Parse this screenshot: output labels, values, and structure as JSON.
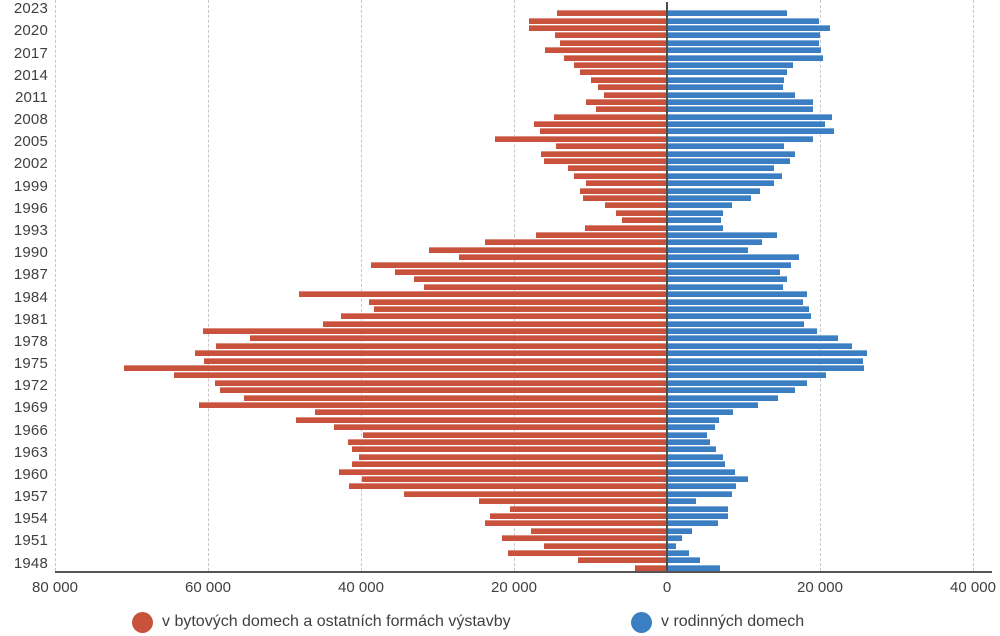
{
  "chart_data": {
    "type": "bar",
    "variant": "diverging-horizontal-pyramid",
    "title": "",
    "xlabel": "",
    "ylabel": "",
    "grid": "vertical-dashed",
    "legend_position": "bottom",
    "years": [
      1948,
      1949,
      1950,
      1951,
      1952,
      1953,
      1954,
      1955,
      1956,
      1957,
      1958,
      1959,
      1960,
      1961,
      1962,
      1963,
      1964,
      1965,
      1966,
      1967,
      1968,
      1969,
      1970,
      1971,
      1972,
      1973,
      1974,
      1975,
      1976,
      1977,
      1978,
      1979,
      1980,
      1981,
      1982,
      1983,
      1984,
      1985,
      1986,
      1987,
      1988,
      1989,
      1990,
      1991,
      1992,
      1993,
      1994,
      1995,
      1996,
      1997,
      1998,
      1999,
      2000,
      2001,
      2002,
      2003,
      2004,
      2005,
      2006,
      2007,
      2008,
      2009,
      2010,
      2011,
      2012,
      2013,
      2014,
      2015,
      2016,
      2017,
      2018,
      2019,
      2020,
      2021,
      2022,
      2023
    ],
    "series": [
      {
        "name": "v bytových domech a ostatních formách výstavby",
        "side": "left",
        "color": "#c8523c",
        "values": [
          4000,
          11500,
          20700,
          16000,
          21400,
          17600,
          23600,
          23000,
          20400,
          24400,
          34200,
          41400,
          39700,
          42700,
          41100,
          40100,
          41100,
          41600,
          39600,
          43400,
          48400,
          45900,
          61000,
          55200,
          58300,
          59000,
          64300,
          70900,
          60400,
          61600,
          58800,
          54400,
          60500,
          44800,
          42500,
          38200,
          38800,
          48000,
          31600,
          33000,
          35400,
          38600,
          27100,
          31000,
          23700,
          17000,
          10600,
          5700,
          6600,
          8000,
          10800,
          11300,
          10500,
          12000,
          12800,
          15900,
          16300,
          14400,
          22300,
          16500,
          17200,
          14600,
          9200,
          10500,
          8100,
          8900,
          9800,
          11300,
          12000,
          13300,
          15800,
          13800,
          14500,
          17900,
          17900,
          14200
        ]
      },
      {
        "name": "v rodinných domech",
        "side": "right",
        "color": "#3c7ec2",
        "values": [
          6800,
          4200,
          2700,
          1100,
          1800,
          3100,
          6500,
          7800,
          7900,
          3700,
          8400,
          8900,
          10400,
          8700,
          7400,
          7200,
          6300,
          5500,
          5100,
          6200,
          6700,
          8500,
          11800,
          14400,
          16600,
          18200,
          20700,
          25600,
          25500,
          26000,
          24000,
          22200,
          19500,
          17800,
          18700,
          18400,
          17700,
          18200,
          15000,
          15600,
          14700,
          16100,
          17100,
          10400,
          12300,
          14300,
          7200,
          6900,
          7200,
          8400,
          10900,
          12000,
          13900,
          14900,
          13900,
          15900,
          16600,
          15200,
          19000,
          21700,
          20500,
          21400,
          18900,
          19000,
          16600,
          15000,
          15100,
          15500,
          16300,
          20300,
          20000,
          19700,
          19900,
          21200,
          19800,
          15600
        ]
      }
    ],
    "x_axis": {
      "ticks": [
        {
          "label": "80 000",
          "value": -80000
        },
        {
          "label": "60 000",
          "value": -60000
        },
        {
          "label": "40 000",
          "value": -40000
        },
        {
          "label": "20 000",
          "value": -20000
        },
        {
          "label": "0",
          "value": 0
        },
        {
          "label": "20 000",
          "value": 20000
        },
        {
          "label": "40 000",
          "value": 40000
        }
      ],
      "xlim": [
        -85000,
        42000
      ]
    },
    "y_axis": {
      "top_year": 2023,
      "bottom_year": 1948,
      "label_every": 3
    }
  },
  "legend": {
    "items": [
      {
        "label": "v bytových domech a ostatních formách výstavby",
        "color": "#c8523c"
      },
      {
        "label": "v rodinných domech",
        "color": "#3c7ec2"
      }
    ]
  }
}
